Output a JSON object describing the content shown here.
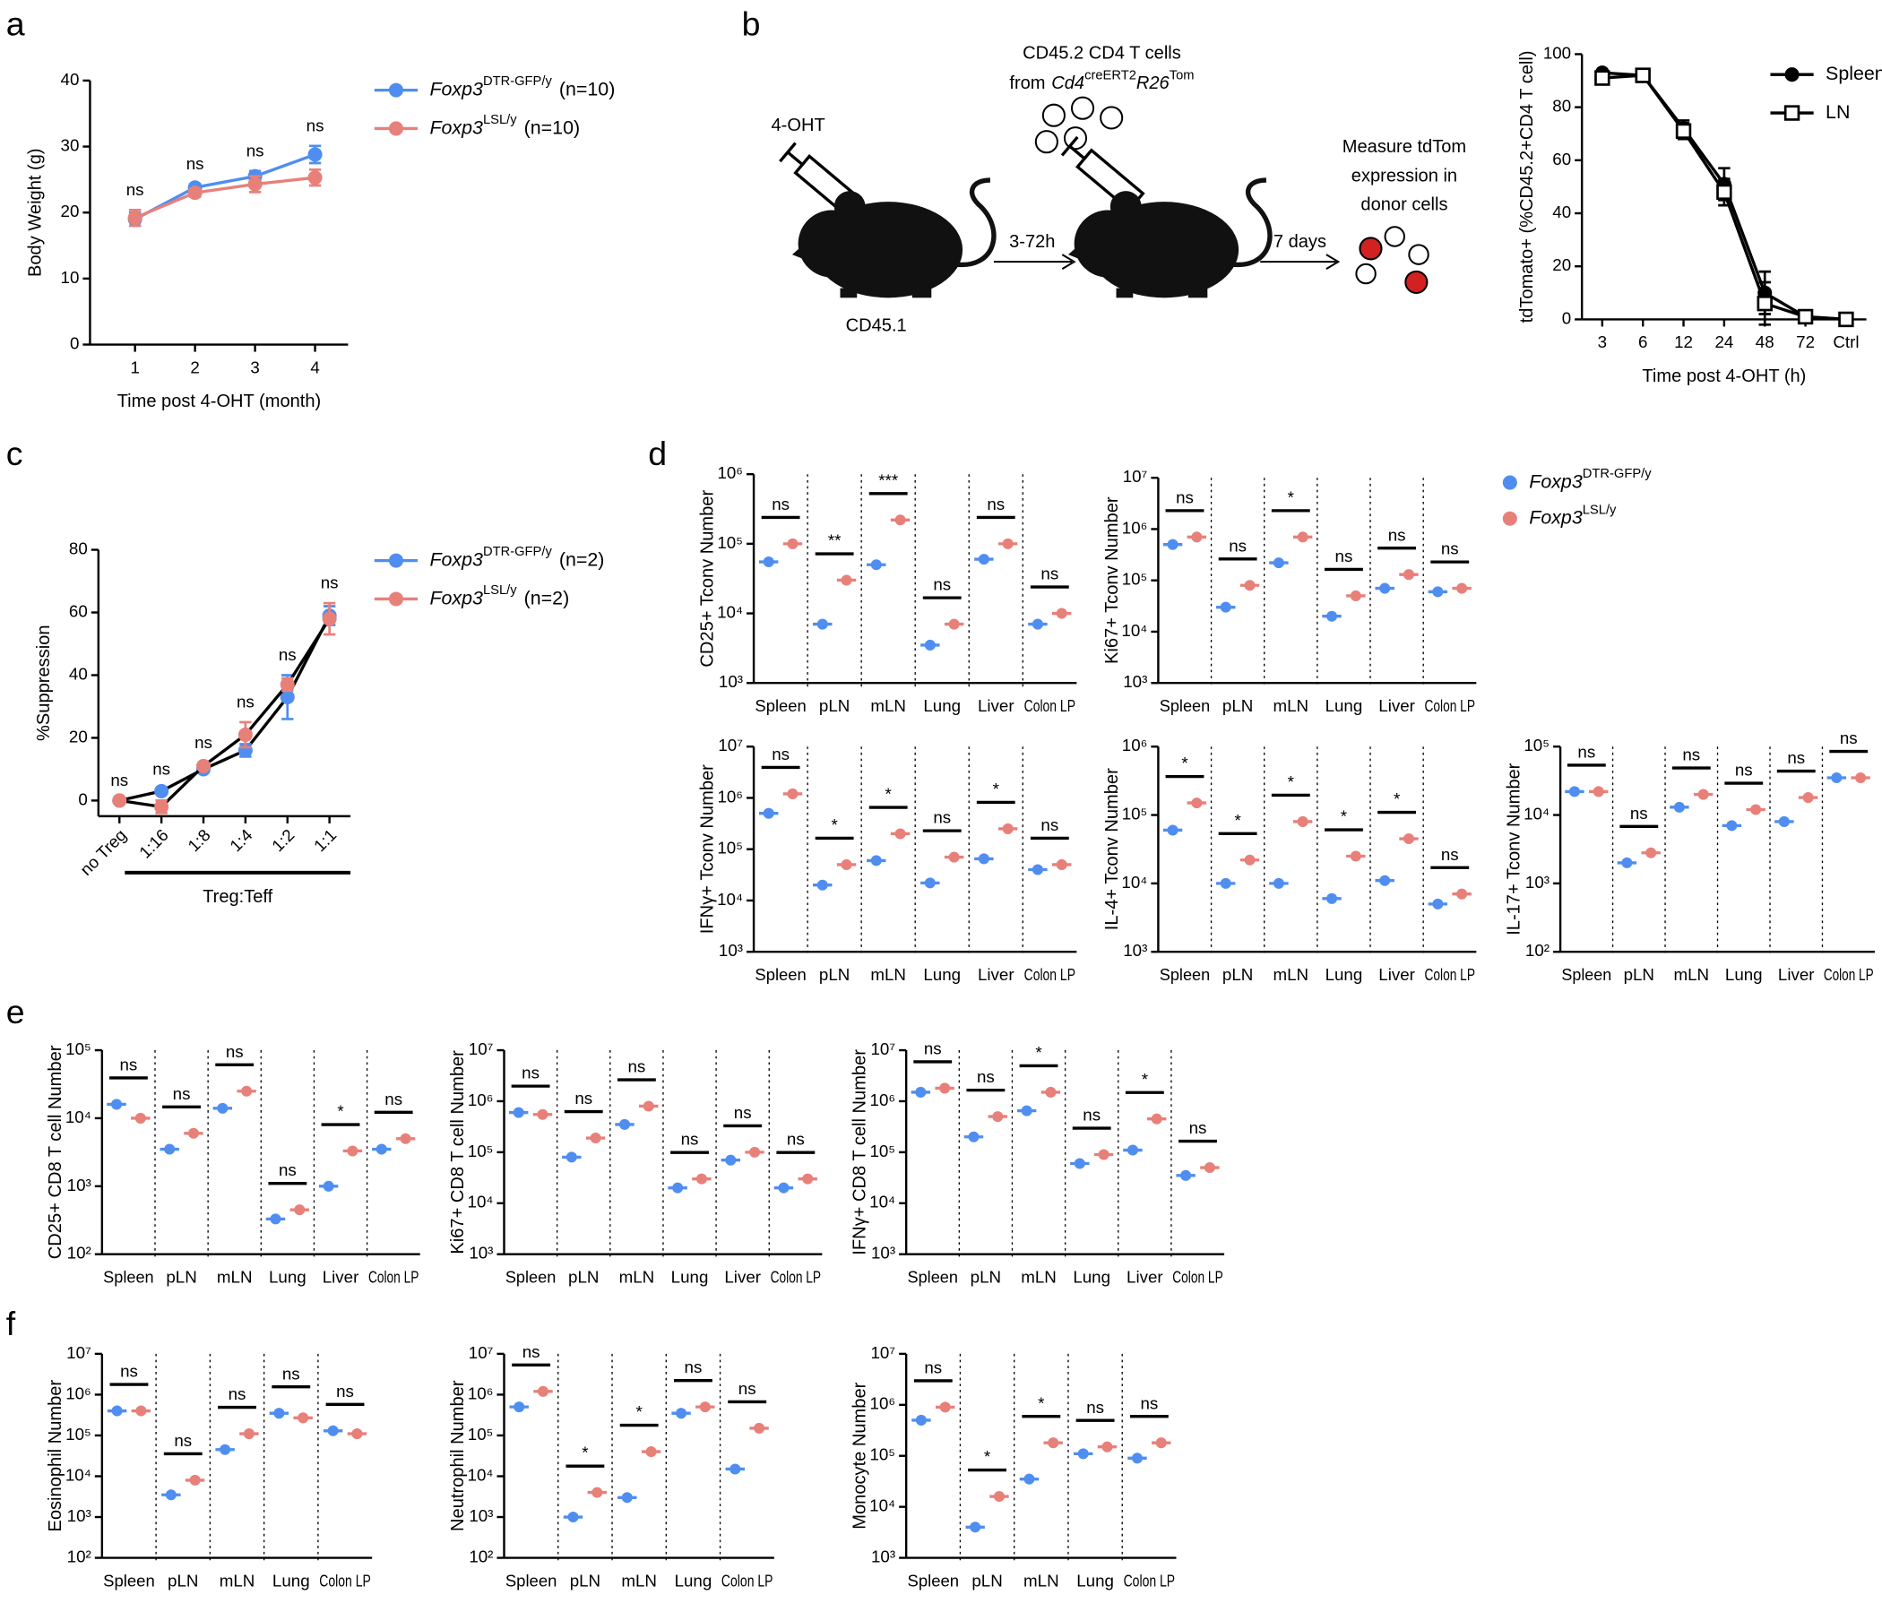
{
  "diagram": {
    "label_drug": "4-OHT",
    "label_recipient": "CD45.1",
    "label_interval": "3-72h",
    "donor_line1": "CD45.2 CD4 T cells",
    "donor_line2": [
      "from",
      "Cd4",
      "creERT2",
      "R26",
      "Tom"
    ],
    "label_wait": "7 days",
    "readout": [
      "Measure tdTom",
      "expression in",
      "donor cells"
    ]
  },
  "chart_data": [
    {
      "panel": "a",
      "type": "line",
      "x_label": "Time post 4-OHT (month)",
      "y_label": "Body Weight (g)",
      "x": [
        1,
        2,
        3,
        4
      ],
      "xlim": [
        0.25,
        4.55
      ],
      "xticks": [
        1,
        2,
        3,
        4
      ],
      "ylim": [
        0,
        40
      ],
      "yticks": [
        0,
        10,
        20,
        30,
        40
      ],
      "series": [
        {
          "name": "Foxp3",
          "name_sup": "DTR-GFP/y",
          "name_suffix": "(n=10)",
          "color": "#4f8ef0",
          "values": [
            19,
            23.8,
            25.5,
            28.8
          ],
          "errors": [
            1,
            0.5,
            0.8,
            1.3
          ]
        },
        {
          "name": "Foxp3",
          "name_sup": "LSL/y",
          "name_suffix": "(n=10)",
          "color": "#e8807a",
          "values": [
            19.2,
            23,
            24.3,
            25.3
          ],
          "errors": [
            1.2,
            0.6,
            1.2,
            1.2
          ]
        }
      ],
      "annotations": [
        "ns",
        "ns",
        "ns",
        "ns"
      ]
    },
    {
      "panel": "b",
      "type": "line",
      "x_label": "Time post 4-OHT (h)",
      "y_label": "tdTomato+ (%CD45.2+CD4 T cell)",
      "categories": [
        "3",
        "6",
        "12",
        "24",
        "48",
        "72",
        "Ctrl"
      ],
      "ylim": [
        0,
        100
      ],
      "yticks": [
        0,
        20,
        40,
        60,
        80,
        100
      ],
      "series": [
        {
          "name": "Spleen",
          "color": "#000000",
          "marker": "circle",
          "values": [
            93,
            92,
            72,
            51,
            10,
            1,
            0
          ],
          "errors": [
            1,
            1,
            3,
            6,
            8,
            1,
            1
          ]
        },
        {
          "name": "LN",
          "color": "#000000",
          "marker": "open-square",
          "values": [
            91,
            92,
            71,
            48,
            6,
            1,
            0
          ],
          "errors": [
            1,
            1,
            3,
            5,
            8,
            1,
            1
          ]
        }
      ]
    },
    {
      "panel": "c",
      "type": "line",
      "x_label": "Treg:Teff",
      "y_label": "%Suppression",
      "categories": [
        "no Treg",
        "1:16",
        "1:8",
        "1:4",
        "1:2",
        "1:1"
      ],
      "xtick_rotation": -45,
      "line_color": "#000000",
      "ylim": [
        -5,
        80
      ],
      "yticks": [
        0,
        20,
        40,
        60,
        80
      ],
      "series": [
        {
          "name": "Foxp3",
          "name_sup": "DTR-GFP/y",
          "name_suffix": "(n=2)",
          "color": "#4f8ef0",
          "values": [
            0,
            3,
            10,
            16,
            33,
            59
          ],
          "errors": [
            0,
            0.5,
            1,
            2,
            7,
            3
          ]
        },
        {
          "name": "Foxp3",
          "name_sup": "LSL/y",
          "name_suffix": "(n=2)",
          "color": "#e8807a",
          "values": [
            0,
            -2,
            11,
            21,
            37,
            58
          ],
          "errors": [
            0,
            2,
            1,
            4,
            2,
            5
          ]
        }
      ],
      "annotations": [
        "ns",
        "ns",
        "ns",
        "ns",
        "ns",
        "ns"
      ]
    },
    {
      "panel": "d",
      "type": "dot",
      "y_label": "CD25+ Tconv  Number",
      "log_y": true,
      "ylim": [
        1000,
        1000000
      ],
      "yticks": [
        {
          "value": 1000,
          "label": "10³"
        },
        {
          "value": 10000,
          "label": "10⁴"
        },
        {
          "value": 100000,
          "label": "10⁵"
        },
        {
          "value": 1000000,
          "label": "10⁶"
        }
      ],
      "categories": [
        "Spleen",
        "pLN",
        "mLN",
        "Lung",
        "Liver",
        "Colon LP"
      ],
      "series": [
        {
          "name": "Foxp3",
          "name_sup": "DTR-GFP/y",
          "color": "#4f8ef0",
          "values": [
            55000,
            7000,
            50000,
            3500,
            60000,
            7000
          ]
        },
        {
          "name": "Foxp3",
          "name_sup": "LSL/y",
          "color": "#e8807a",
          "values": [
            100000,
            30000,
            220000,
            7000,
            100000,
            10000
          ]
        }
      ],
      "significance": [
        "ns",
        "**",
        "***",
        "ns",
        "ns",
        "ns"
      ]
    },
    {
      "type": "dot",
      "y_label": "Ki67+ Tconv Number",
      "log_y": true,
      "ylim": [
        1000,
        10000000
      ],
      "yticks": [
        {
          "value": 1000,
          "label": "10³"
        },
        {
          "value": 10000,
          "label": "10⁴"
        },
        {
          "value": 100000,
          "label": "10⁵"
        },
        {
          "value": 1000000,
          "label": "10⁶"
        },
        {
          "value": 10000000,
          "label": "10⁷"
        }
      ],
      "categories": [
        "Spleen",
        "pLN",
        "mLN",
        "Lung",
        "Liver",
        "Colon LP"
      ],
      "series": [
        {
          "color": "#4f8ef0",
          "values": [
            500000,
            30000,
            220000,
            20000,
            70000,
            60000
          ]
        },
        {
          "color": "#e8807a",
          "values": [
            700000,
            80000,
            700000,
            50000,
            130000,
            70000
          ]
        }
      ],
      "significance": [
        "ns",
        "ns",
        "*",
        "ns",
        "ns",
        "ns"
      ]
    },
    {
      "type": "dot",
      "y_label": "IFNγ+ Tconv Number",
      "log_y": true,
      "ylim": [
        1000,
        10000000
      ],
      "yticks": [
        {
          "value": 1000,
          "label": "10³"
        },
        {
          "value": 10000,
          "label": "10⁴"
        },
        {
          "value": 100000,
          "label": "10⁵"
        },
        {
          "value": 1000000,
          "label": "10⁶"
        },
        {
          "value": 10000000,
          "label": "10⁷"
        }
      ],
      "categories": [
        "Spleen",
        "pLN",
        "mLN",
        "Lung",
        "Liver",
        "Colon LP"
      ],
      "series": [
        {
          "color": "#4f8ef0",
          "values": [
            500000,
            20000,
            60000,
            22000,
            65000,
            40000
          ]
        },
        {
          "color": "#e8807a",
          "values": [
            1200000,
            50000,
            200000,
            70000,
            250000,
            50000
          ]
        }
      ],
      "significance": [
        "ns",
        "*",
        "*",
        "ns",
        "*",
        "ns"
      ]
    },
    {
      "type": "dot",
      "y_label": "IL-4+ Tconv Number",
      "log_y": true,
      "ylim": [
        1000,
        1000000
      ],
      "yticks": [
        {
          "value": 1000,
          "label": "10³"
        },
        {
          "value": 10000,
          "label": "10⁴"
        },
        {
          "value": 100000,
          "label": "10⁵"
        },
        {
          "value": 1000000,
          "label": "10⁶"
        }
      ],
      "categories": [
        "Spleen",
        "pLN",
        "mLN",
        "Lung",
        "Liver",
        "Colon LP"
      ],
      "series": [
        {
          "color": "#4f8ef0",
          "values": [
            60000,
            10000,
            10000,
            6000,
            11000,
            5000
          ]
        },
        {
          "color": "#e8807a",
          "values": [
            150000,
            22000,
            80000,
            25000,
            45000,
            7000
          ]
        }
      ],
      "significance": [
        "*",
        "*",
        "*",
        "*",
        "*",
        "ns"
      ]
    },
    {
      "type": "dot",
      "y_label": "IL-17+ Tconv  Number",
      "log_y": true,
      "ylim": [
        100,
        100000
      ],
      "yticks": [
        {
          "value": 100,
          "label": "10²"
        },
        {
          "value": 1000,
          "label": "10³"
        },
        {
          "value": 10000,
          "label": "10⁴"
        },
        {
          "value": 100000,
          "label": "10⁵"
        }
      ],
      "categories": [
        "Spleen",
        "pLN",
        "mLN",
        "Lung",
        "Liver",
        "Colon LP"
      ],
      "series": [
        {
          "color": "#4f8ef0",
          "values": [
            22000,
            2000,
            13000,
            7000,
            8000,
            35000
          ]
        },
        {
          "color": "#e8807a",
          "values": [
            22000,
            2800,
            20000,
            12000,
            18000,
            35000
          ]
        }
      ],
      "significance": [
        "ns",
        "ns",
        "ns",
        "ns",
        "ns",
        "ns"
      ]
    },
    {
      "panel": "e",
      "type": "dot",
      "y_label": "CD25+ CD8 T cell Number",
      "log_y": true,
      "ylim": [
        100,
        100000
      ],
      "yticks": [
        {
          "value": 100,
          "label": "10²"
        },
        {
          "value": 1000,
          "label": "10³"
        },
        {
          "value": 10000,
          "label": "10⁴"
        },
        {
          "value": 100000,
          "label": "10⁵"
        }
      ],
      "categories": [
        "Spleen",
        "pLN",
        "mLN",
        "Lung",
        "Liver",
        "Colon LP"
      ],
      "series": [
        {
          "color": "#4f8ef0",
          "values": [
            16000,
            3500,
            14000,
            330,
            1000,
            3500
          ]
        },
        {
          "color": "#e8807a",
          "values": [
            10000,
            6000,
            25000,
            450,
            3300,
            5000
          ]
        }
      ],
      "significance": [
        "ns",
        "ns",
        "ns",
        "ns",
        "*",
        "ns"
      ]
    },
    {
      "type": "dot",
      "y_label": "Ki67+ CD8 T cell  Number",
      "log_y": true,
      "ylim": [
        1000,
        10000000
      ],
      "yticks": [
        {
          "value": 1000,
          "label": "10³"
        },
        {
          "value": 10000,
          "label": "10⁴"
        },
        {
          "value": 100000,
          "label": "10⁵"
        },
        {
          "value": 1000000,
          "label": "10⁶"
        },
        {
          "value": 10000000,
          "label": "10⁷"
        }
      ],
      "categories": [
        "Spleen",
        "pLN",
        "mLN",
        "Lung",
        "Liver",
        "Colon LP"
      ],
      "series": [
        {
          "color": "#4f8ef0",
          "values": [
            600000,
            80000,
            350000,
            20000,
            70000,
            20000
          ]
        },
        {
          "color": "#e8807a",
          "values": [
            550000,
            190000,
            800000,
            30000,
            100000,
            30000
          ]
        }
      ],
      "significance": [
        "ns",
        "ns",
        "ns",
        "ns",
        "ns",
        "ns"
      ]
    },
    {
      "type": "dot",
      "y_label": "IFNγ+ CD8 T cell Number",
      "log_y": true,
      "ylim": [
        1000,
        10000000
      ],
      "yticks": [
        {
          "value": 1000,
          "label": "10³"
        },
        {
          "value": 10000,
          "label": "10⁴"
        },
        {
          "value": 100000,
          "label": "10⁵"
        },
        {
          "value": 1000000,
          "label": "10⁶"
        },
        {
          "value": 10000000,
          "label": "10⁷"
        }
      ],
      "categories": [
        "Spleen",
        "pLN",
        "mLN",
        "Lung",
        "Liver",
        "Colon LP"
      ],
      "series": [
        {
          "color": "#4f8ef0",
          "values": [
            1500000,
            200000,
            650000,
            60000,
            110000,
            35000
          ]
        },
        {
          "color": "#e8807a",
          "values": [
            1800000,
            500000,
            1500000,
            90000,
            450000,
            50000
          ]
        }
      ],
      "significance": [
        "ns",
        "ns",
        "*",
        "ns",
        "*",
        "ns"
      ]
    },
    {
      "panel": "f",
      "type": "dot",
      "y_label": "Eosinophil Number",
      "log_y": true,
      "ylim": [
        100,
        10000000
      ],
      "yticks": [
        {
          "value": 100,
          "label": "10²"
        },
        {
          "value": 1000,
          "label": "10³"
        },
        {
          "value": 10000,
          "label": "10⁴"
        },
        {
          "value": 100000,
          "label": "10⁵"
        },
        {
          "value": 1000000,
          "label": "10⁶"
        },
        {
          "value": 10000000,
          "label": "10⁷"
        }
      ],
      "categories": [
        "Spleen",
        "pLN",
        "mLN",
        "Lung",
        "Colon LP"
      ],
      "series": [
        {
          "color": "#4f8ef0",
          "values": [
            400000,
            3500,
            45000,
            350000,
            130000
          ]
        },
        {
          "color": "#e8807a",
          "values": [
            400000,
            8000,
            110000,
            270000,
            110000
          ]
        }
      ],
      "significance": [
        "ns",
        "ns",
        "ns",
        "ns",
        "ns"
      ]
    },
    {
      "type": "dot",
      "y_label": "Neutrophil Number",
      "log_y": true,
      "ylim": [
        100,
        10000000
      ],
      "yticks": [
        {
          "value": 100,
          "label": "10²"
        },
        {
          "value": 1000,
          "label": "10³"
        },
        {
          "value": 10000,
          "label": "10⁴"
        },
        {
          "value": 100000,
          "label": "10⁵"
        },
        {
          "value": 1000000,
          "label": "10⁶"
        },
        {
          "value": 10000000,
          "label": "10⁷"
        }
      ],
      "categories": [
        "Spleen",
        "pLN",
        "mLN",
        "Lung",
        "Colon LP"
      ],
      "series": [
        {
          "color": "#4f8ef0",
          "values": [
            500000,
            1000,
            3000,
            350000,
            15000
          ]
        },
        {
          "color": "#e8807a",
          "values": [
            1200000,
            4000,
            40000,
            500000,
            150000
          ]
        }
      ],
      "significance": [
        "ns",
        "*",
        "*",
        "ns",
        "ns"
      ]
    },
    {
      "type": "dot",
      "y_label": "Monocyte Number",
      "log_y": true,
      "ylim": [
        1000,
        10000000
      ],
      "yticks": [
        {
          "value": 1000,
          "label": "10³"
        },
        {
          "value": 10000,
          "label": "10⁴"
        },
        {
          "value": 100000,
          "label": "10⁵"
        },
        {
          "value": 1000000,
          "label": "10⁶"
        },
        {
          "value": 10000000,
          "label": "10⁷"
        }
      ],
      "categories": [
        "Spleen",
        "pLN",
        "mLN",
        "Lung",
        "Colon LP"
      ],
      "series": [
        {
          "color": "#4f8ef0",
          "values": [
            500000,
            4000,
            35000,
            110000,
            90000
          ]
        },
        {
          "color": "#e8807a",
          "values": [
            900000,
            16000,
            180000,
            150000,
            180000
          ]
        }
      ],
      "significance": [
        "ns",
        "*",
        "*",
        "ns",
        "ns"
      ]
    }
  ]
}
